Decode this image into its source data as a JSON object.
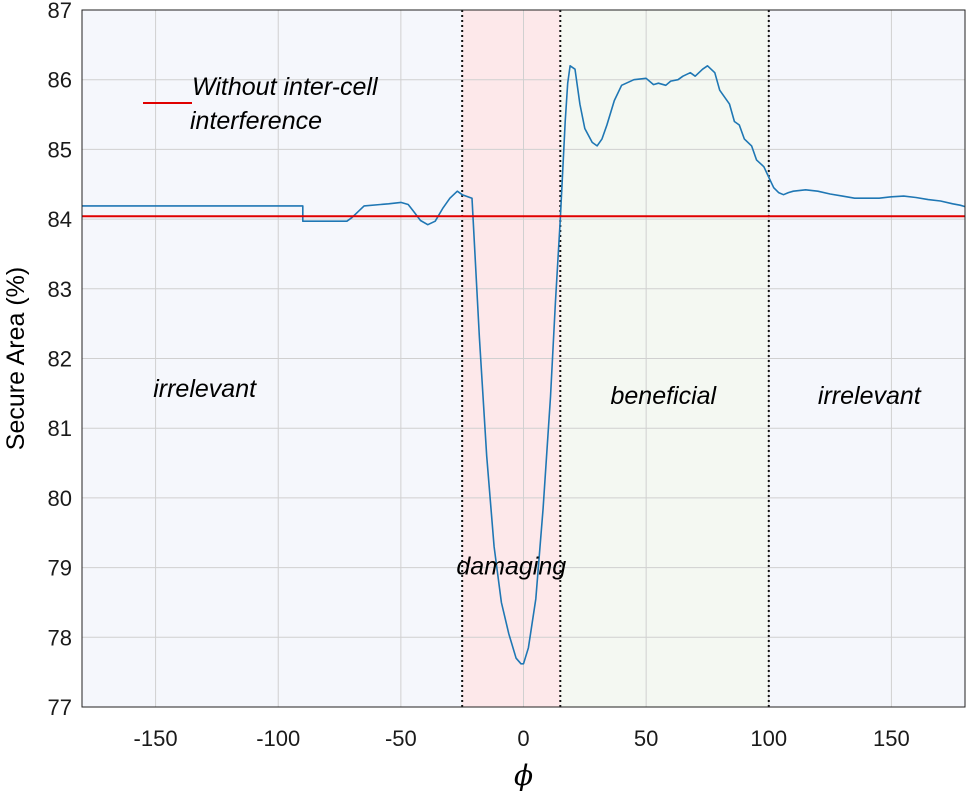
{
  "chart_data": {
    "type": "line",
    "title": "",
    "xlabel": "ϕ",
    "ylabel": "Secure Area (%)",
    "xlim": [
      -180,
      180
    ],
    "ylim": [
      77,
      87
    ],
    "xticks": [
      -150,
      -100,
      -50,
      0,
      50,
      100,
      150
    ],
    "yticks": [
      77,
      78,
      79,
      80,
      81,
      82,
      83,
      84,
      85,
      86,
      87
    ],
    "grid": true,
    "legend": {
      "position": "top-left",
      "entries": [
        "Without inter-cell interference"
      ]
    },
    "legend_lines": [
      "Without inter-cell",
      "interference"
    ],
    "colors": {
      "series": "#1f77b4",
      "reference": "#e00000",
      "background": "#f5f7fc",
      "damaging": "#fde8ea",
      "beneficial": "#f4f8f2",
      "grid": "#d0d0d0"
    },
    "regions": [
      {
        "label": "irrelevant",
        "x_start": -180,
        "x_end": -25,
        "label_x": -130,
        "label_y": 81.45
      },
      {
        "label": "damaging",
        "x_start": -25,
        "x_end": 15,
        "label_x": -5,
        "label_y": 78.9
      },
      {
        "label": "beneficial",
        "x_start": 15,
        "x_end": 100,
        "label_x": 57,
        "label_y": 81.35
      },
      {
        "label": "irrelevant",
        "x_start": 100,
        "x_end": 180,
        "label_x": 141,
        "label_y": 81.35
      }
    ],
    "boundaries": [
      -25,
      15,
      100
    ],
    "reference_line": {
      "name": "Without inter-cell interference",
      "y": 84.04
    },
    "series": [
      {
        "name": "",
        "x": [
          -180,
          -90,
          -90,
          -72,
          -70,
          -65,
          -55,
          -50,
          -47,
          -45,
          -42,
          -39,
          -36,
          -33,
          -30,
          -27,
          -25,
          -21,
          -18,
          -15,
          -12,
          -9,
          -6,
          -3,
          -1,
          0,
          2,
          5,
          8,
          11,
          13,
          15,
          17,
          18,
          19,
          21,
          23,
          25,
          28,
          30,
          32,
          34,
          37,
          40,
          45,
          50,
          53,
          55,
          58,
          60,
          63,
          65,
          68,
          70,
          73,
          75,
          78,
          80,
          84,
          86,
          88,
          90,
          93,
          95,
          98,
          100,
          102,
          104,
          106,
          108,
          110,
          115,
          120,
          125,
          130,
          135,
          140,
          145,
          150,
          155,
          160,
          165,
          170,
          175,
          178,
          180
        ],
        "y": [
          84.19,
          84.19,
          83.97,
          83.97,
          84.02,
          84.19,
          84.22,
          84.24,
          84.21,
          84.12,
          83.98,
          83.92,
          83.97,
          84.15,
          84.3,
          84.4,
          84.35,
          84.3,
          82.3,
          80.6,
          79.3,
          78.5,
          78.05,
          77.7,
          77.62,
          77.62,
          77.85,
          78.55,
          79.85,
          81.45,
          82.8,
          84.0,
          85.4,
          85.95,
          86.2,
          86.15,
          85.65,
          85.3,
          85.1,
          85.05,
          85.15,
          85.35,
          85.7,
          85.92,
          86.0,
          86.02,
          85.93,
          85.95,
          85.92,
          85.98,
          86.0,
          86.05,
          86.1,
          86.05,
          86.15,
          86.2,
          86.1,
          85.85,
          85.65,
          85.4,
          85.35,
          85.15,
          85.05,
          84.85,
          84.75,
          84.6,
          84.45,
          84.38,
          84.35,
          84.38,
          84.4,
          84.42,
          84.4,
          84.36,
          84.33,
          84.3,
          84.3,
          84.3,
          84.32,
          84.33,
          84.31,
          84.28,
          84.26,
          84.22,
          84.2,
          84.18
        ]
      }
    ]
  }
}
